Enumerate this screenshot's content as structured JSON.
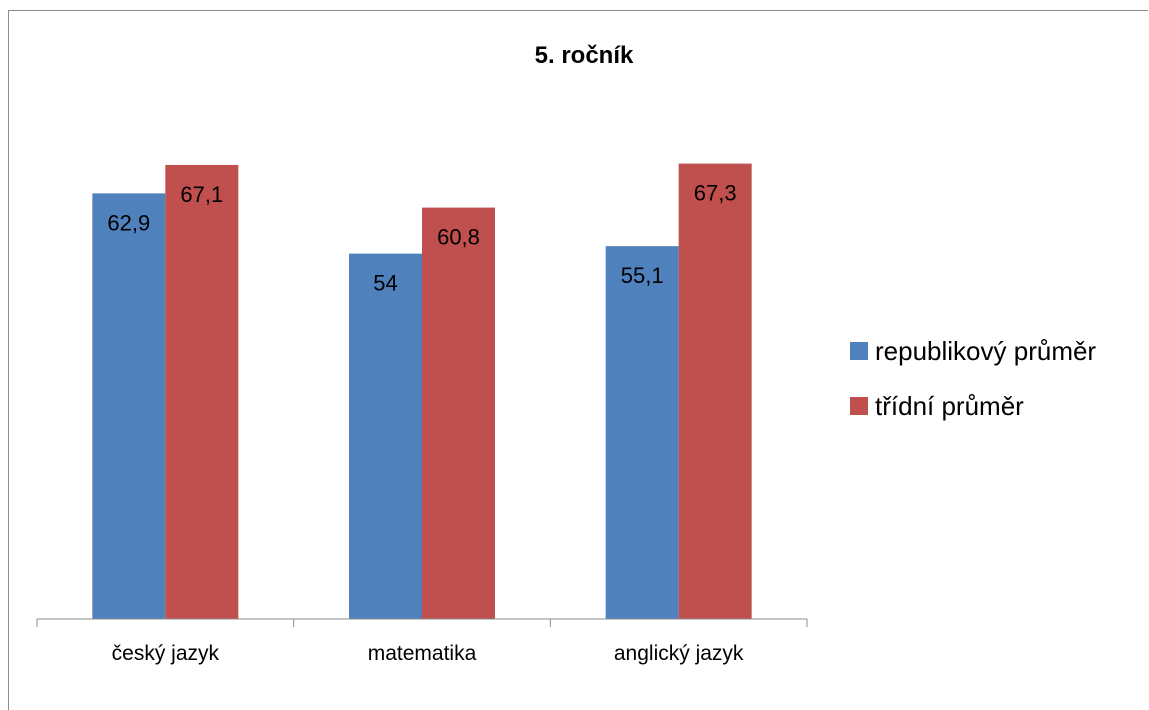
{
  "chart_data": {
    "type": "bar",
    "title": "5. ročník",
    "categories": [
      "český jazyk",
      "matematika",
      "anglický jazyk"
    ],
    "series": [
      {
        "name": "republikový průměr",
        "values": [
          62.9,
          54,
          55.1
        ],
        "labels": [
          "62,9",
          "54",
          "55,1"
        ],
        "color": "#4f81bd"
      },
      {
        "name": "třídní průměr",
        "values": [
          67.1,
          60.8,
          67.3
        ],
        "labels": [
          "67,1",
          "60,8",
          "67,3"
        ],
        "color": "#c0504d"
      }
    ],
    "ylim": [
      0,
      90
    ],
    "grid": false,
    "legend": "right"
  }
}
